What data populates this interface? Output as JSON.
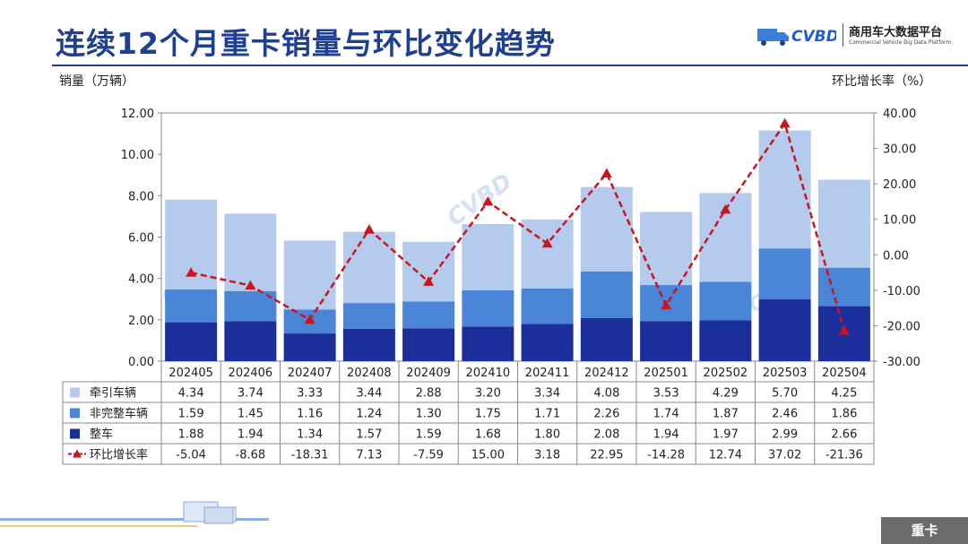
{
  "header": {
    "title": "连续12个月重卡销量与环比变化趋势",
    "logo_name": "商用车大数据平台",
    "logo_sub": "Commercial Vehicle Big Data Platform",
    "logo_mark": "CVBD"
  },
  "footer": {
    "badge": "重卡"
  },
  "colors": {
    "title": "#1f3f8f",
    "tractor": "#b5cbee",
    "incomplete": "#4a85d8",
    "complete": "#1a2f9a",
    "mom": "#c8161d"
  },
  "chart_data": {
    "type": "bar",
    "stacked": true,
    "categories": [
      "202405",
      "202406",
      "202407",
      "202408",
      "202409",
      "202410",
      "202411",
      "202412",
      "202501",
      "202502",
      "202503",
      "202504"
    ],
    "ylabel": "销量（万辆）",
    "y2label": "环比增长率（%）",
    "ylim": [
      0,
      12
    ],
    "y2lim": [
      -30,
      40
    ],
    "yticks": [
      "0.00",
      "2.00",
      "4.00",
      "6.00",
      "8.00",
      "10.00",
      "12.00"
    ],
    "y2ticks": [
      "-30.00",
      "-20.00",
      "-10.00",
      "0.00",
      "10.00",
      "20.00",
      "30.00",
      "40.00"
    ],
    "series": [
      {
        "name": "牵引车辆",
        "type": "bar",
        "values": [
          4.34,
          3.74,
          3.33,
          3.44,
          2.88,
          3.2,
          3.34,
          4.08,
          3.53,
          4.29,
          5.7,
          4.25
        ],
        "display": [
          "4.34",
          "3.74",
          "3.33",
          "3.44",
          "2.88",
          "3.20",
          "3.34",
          "4.08",
          "3.53",
          "4.29",
          "5.70",
          "4.25"
        ]
      },
      {
        "name": "非完整车辆",
        "type": "bar",
        "values": [
          1.59,
          1.45,
          1.16,
          1.24,
          1.3,
          1.75,
          1.71,
          2.26,
          1.74,
          1.87,
          2.46,
          1.86
        ],
        "display": [
          "1.59",
          "1.45",
          "1.16",
          "1.24",
          "1.30",
          "1.75",
          "1.71",
          "2.26",
          "1.74",
          "1.87",
          "2.46",
          "1.86"
        ]
      },
      {
        "name": "整车",
        "type": "bar",
        "values": [
          1.88,
          1.94,
          1.34,
          1.57,
          1.59,
          1.68,
          1.8,
          2.08,
          1.94,
          1.97,
          2.99,
          2.66
        ],
        "display": [
          "1.88",
          "1.94",
          "1.34",
          "1.57",
          "1.59",
          "1.68",
          "1.80",
          "2.08",
          "1.94",
          "1.97",
          "2.99",
          "2.66"
        ]
      },
      {
        "name": "环比增长率",
        "type": "line",
        "axis": "right",
        "values": [
          -5.04,
          -8.68,
          -18.31,
          7.13,
          -7.59,
          15.0,
          3.18,
          22.95,
          -14.28,
          12.74,
          37.02,
          -21.36
        ],
        "display": [
          "-5.04",
          "-8.68",
          "-18.31",
          "7.13",
          "-7.59",
          "15.00",
          "3.18",
          "22.95",
          "-14.28",
          "12.74",
          "37.02",
          "-21.36"
        ]
      }
    ],
    "grid": false,
    "legend": "data-table"
  }
}
